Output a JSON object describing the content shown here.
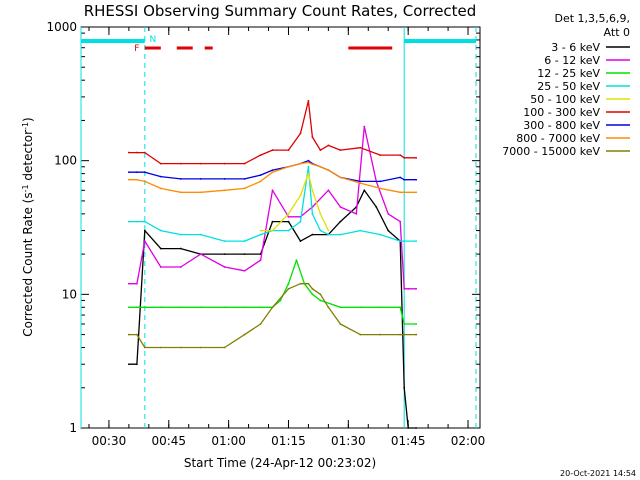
{
  "chart_data": {
    "type": "line",
    "title": "RHESSI Observing Summary Count Rates, Corrected",
    "xlabel": "Start Time (24-Apr-12 00:23:02)",
    "ylabel_main": "Corrected Count Rate (s",
    "ylabel_sup1": "-1",
    "ylabel_mid": " detector",
    "ylabel_sup2": "-1",
    "ylabel_end": ")",
    "y_scale": "log",
    "ylim": [
      1,
      1000
    ],
    "xlim_minutes_after_0023": [
      0,
      100
    ],
    "x_tick_labels": [
      "00:30",
      "00:45",
      "01:00",
      "01:15",
      "01:30",
      "01:45",
      "02:00"
    ],
    "x_tick_minutes": [
      7,
      22,
      37,
      52,
      67,
      82,
      97
    ],
    "y_tick_labels": [
      "1",
      "10",
      "100",
      "1000"
    ],
    "y_tick_values": [
      1,
      10,
      100,
      1000
    ],
    "grid": false,
    "legend_header": [
      "Det 1,3,5,6,9,",
      "Att 0"
    ],
    "legend_position": "right",
    "timestamp": "20-Oct-2021 14:54",
    "flags": [
      {
        "label": "F",
        "color": "#e00000"
      },
      {
        "label": "N",
        "color": "#00e0e0"
      }
    ],
    "flag_segments": {
      "N": [
        [
          0,
          16
        ],
        [
          81,
          99
        ]
      ],
      "F": [
        [
          16,
          20
        ],
        [
          24,
          28
        ],
        [
          31,
          33
        ],
        [
          67,
          78
        ]
      ]
    },
    "vertical_markers_minutes": [
      0,
      16,
      81,
      99
    ],
    "series": [
      {
        "name": "3 - 6 keV",
        "color": "#000000",
        "x": [
          12,
          14,
          16,
          20,
          25,
          30,
          36,
          41,
          45,
          48,
          52,
          55,
          58,
          62,
          65,
          69,
          71,
          74,
          77,
          80,
          81,
          82,
          84
        ],
        "y": [
          3,
          3,
          30,
          22,
          22,
          20,
          20,
          20,
          20,
          35,
          35,
          25,
          28,
          28,
          35,
          45,
          60,
          45,
          30,
          25,
          2,
          1,
          1
        ]
      },
      {
        "name": "6 - 12 keV",
        "color": "#e000e0",
        "x": [
          12,
          14,
          16,
          20,
          25,
          30,
          36,
          41,
          45,
          48,
          52,
          55,
          58,
          62,
          65,
          69,
          71,
          74,
          77,
          80,
          81,
          82,
          84
        ],
        "y": [
          12,
          12,
          25,
          16,
          16,
          20,
          16,
          15,
          18,
          60,
          38,
          38,
          45,
          60,
          45,
          40,
          180,
          70,
          40,
          35,
          11,
          11,
          11
        ]
      },
      {
        "name": "12 - 25 keV",
        "color": "#00e000",
        "x": [
          12,
          14,
          16,
          20,
          25,
          30,
          36,
          41,
          45,
          48,
          50,
          52,
          54,
          56,
          58,
          60,
          65,
          70,
          75,
          80,
          81,
          84
        ],
        "y": [
          8,
          8,
          8,
          8,
          8,
          8,
          8,
          8,
          8,
          8,
          9,
          12,
          18,
          12,
          10,
          9,
          8,
          8,
          8,
          8,
          6,
          6
        ]
      },
      {
        "name": "25 - 50 keV",
        "color": "#00e0e0",
        "x": [
          12,
          14,
          16,
          20,
          25,
          30,
          36,
          41,
          45,
          48,
          52,
          55,
          57,
          58,
          60,
          62,
          65,
          70,
          75,
          80,
          81,
          84
        ],
        "y": [
          35,
          35,
          35,
          30,
          28,
          28,
          25,
          25,
          28,
          30,
          30,
          35,
          90,
          40,
          30,
          28,
          28,
          30,
          28,
          25,
          25,
          25
        ]
      },
      {
        "name": "50 - 100 keV",
        "color": "#e0e000",
        "x": [
          45,
          48,
          52,
          55,
          57,
          58,
          60,
          62
        ],
        "y": [
          30,
          30,
          40,
          55,
          80,
          60,
          40,
          30
        ]
      },
      {
        "name": "100 - 300 keV",
        "color": "#e00000",
        "x": [
          12,
          14,
          16,
          20,
          25,
          30,
          36,
          41,
          45,
          48,
          52,
          55,
          57,
          58,
          60,
          62,
          65,
          70,
          75,
          80,
          81,
          84
        ],
        "y": [
          115,
          115,
          115,
          95,
          95,
          95,
          95,
          95,
          110,
          120,
          120,
          160,
          280,
          150,
          120,
          130,
          120,
          125,
          110,
          110,
          105,
          105
        ]
      },
      {
        "name": "300 - 800 keV",
        "color": "#0000e0",
        "x": [
          12,
          14,
          16,
          20,
          25,
          30,
          36,
          41,
          45,
          48,
          52,
          55,
          57,
          58,
          60,
          62,
          65,
          70,
          75,
          80,
          81,
          84
        ],
        "y": [
          82,
          82,
          82,
          76,
          73,
          73,
          73,
          73,
          78,
          85,
          90,
          95,
          100,
          95,
          90,
          85,
          75,
          70,
          70,
          75,
          72,
          72
        ]
      },
      {
        "name": "800 - 7000 keV",
        "color": "#ff8c00",
        "x": [
          12,
          14,
          16,
          20,
          25,
          30,
          36,
          41,
          45,
          48,
          52,
          55,
          57,
          58,
          60,
          62,
          65,
          70,
          75,
          80,
          81,
          84
        ],
        "y": [
          72,
          72,
          70,
          62,
          58,
          58,
          60,
          62,
          70,
          82,
          90,
          95,
          97,
          94,
          90,
          85,
          75,
          68,
          62,
          58,
          58,
          58
        ]
      },
      {
        "name": "7000 - 15000 keV",
        "color": "#808000",
        "x": [
          12,
          14,
          16,
          20,
          25,
          30,
          36,
          41,
          45,
          48,
          52,
          55,
          57,
          58,
          60,
          62,
          65,
          70,
          75,
          80,
          81,
          84
        ],
        "y": [
          5,
          5,
          4,
          4,
          4,
          4,
          4,
          5,
          6,
          8,
          11,
          12,
          12,
          11,
          10,
          8,
          6,
          5,
          5,
          5,
          5,
          5
        ]
      }
    ]
  }
}
